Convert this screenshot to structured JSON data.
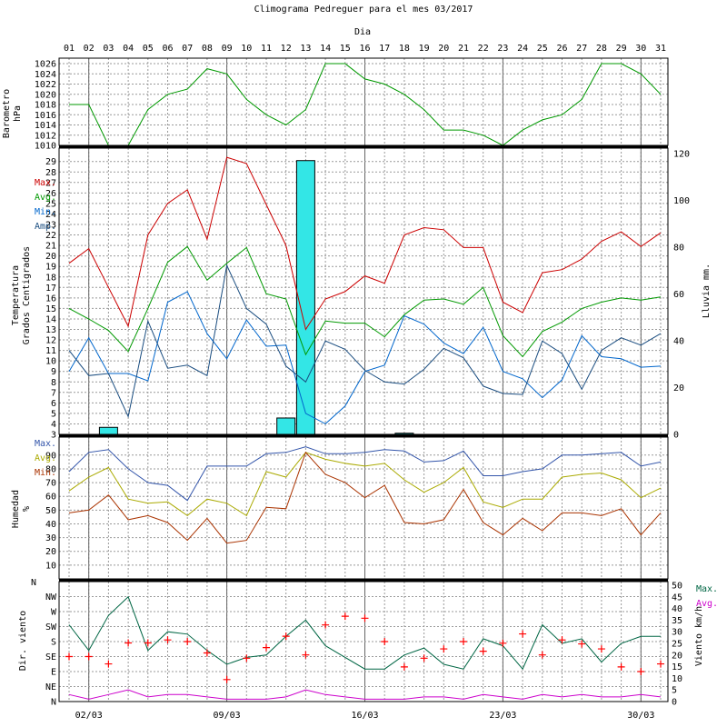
{
  "title": "Climograma Pedreguer para el mes 03/2017",
  "days_label": "Dia",
  "days": [
    "01",
    "02",
    "03",
    "04",
    "05",
    "06",
    "07",
    "08",
    "09",
    "10",
    "11",
    "12",
    "13",
    "14",
    "15",
    "16",
    "17",
    "18",
    "19",
    "20",
    "21",
    "22",
    "23",
    "24",
    "25",
    "26",
    "27",
    "28",
    "29",
    "30",
    "31"
  ],
  "date_ticks": [
    "02/03",
    "09/03",
    "16/03",
    "23/03",
    "30/03"
  ],
  "colors": {
    "max": "#cc0000",
    "avg": "#009900",
    "min": "#0066cc",
    "amp": "#1a4d80",
    "rain": "#33e6e6",
    "pressure": "#009900",
    "hum_max": "#3355aa",
    "hum_avg": "#aaaa00",
    "hum_min": "#aa3300",
    "wind_dir": "#ff0000",
    "wind_max": "#006644",
    "wind_avg": "#cc00cc"
  },
  "chart_data": [
    {
      "type": "line",
      "name": "barometro",
      "ylabel": [
        "Barometro",
        "hPa"
      ],
      "ylim": [
        1010,
        1026
      ],
      "ticks": [
        "1010",
        "1012",
        "1014",
        "1016",
        "1018",
        "1020",
        "1022",
        "1024",
        "1026"
      ],
      "series": [
        {
          "values": [
            1018,
            1018,
            1009,
            1010,
            1017,
            1020,
            1021,
            1025,
            1024,
            1019,
            1016,
            1014,
            1017,
            1026,
            1026,
            1023,
            1022,
            1020,
            1017,
            1013,
            1013,
            1012,
            1010,
            1013,
            1015,
            1016,
            1019,
            1026,
            1026,
            1024,
            1020
          ]
        }
      ]
    },
    {
      "type": "line",
      "name": "temperatura",
      "ylabel": [
        "Temperatura",
        "Grados Centigrados"
      ],
      "legend": [
        "Max.",
        "Avg.",
        "Min.",
        "Amp."
      ],
      "ylim": [
        3,
        30
      ],
      "ticks": [
        "3",
        "4",
        "5",
        "6",
        "7",
        "8",
        "9",
        "10",
        "11",
        "12",
        "13",
        "14",
        "15",
        "16",
        "17",
        "18",
        "19",
        "20",
        "21",
        "22",
        "23",
        "24",
        "25",
        "26",
        "27",
        "28",
        "29"
      ],
      "y2label": "Lluvia mm.",
      "y2lim": [
        0,
        120
      ],
      "y2ticks": [
        "0",
        "20",
        "40",
        "60",
        "80",
        "100",
        "120"
      ],
      "series": [
        {
          "values": [
            19.3,
            20.7,
            17.0,
            13.3,
            22.0,
            25.0,
            26.3,
            21.6,
            29.4,
            28.8,
            24.9,
            21.0,
            13.0,
            15.9,
            16.6,
            18.1,
            17.4,
            22.0,
            22.7,
            22.5,
            20.8,
            20.8,
            15.6,
            14.6,
            18.4,
            18.7,
            19.7,
            21.4,
            22.3,
            20.9,
            22.2
          ]
        },
        {
          "values": [
            15.0,
            14.0,
            12.9,
            10.9,
            15.0,
            19.4,
            20.9,
            17.7,
            19.3,
            20.8,
            16.4,
            15.9,
            10.6,
            13.8,
            13.6,
            13.6,
            12.3,
            14.4,
            15.8,
            15.9,
            15.4,
            17.0,
            12.4,
            10.4,
            12.8,
            13.7,
            15.0,
            15.6,
            16.0,
            15.8,
            16.1
          ]
        },
        {
          "values": [
            9.0,
            12.2,
            8.8,
            8.8,
            8.1,
            15.6,
            16.6,
            12.6,
            10.2,
            13.9,
            11.4,
            11.5,
            5.0,
            4.0,
            5.7,
            9.0,
            9.6,
            14.3,
            13.5,
            11.7,
            10.7,
            13.2,
            9.0,
            8.3,
            6.5,
            8.2,
            12.4,
            10.4,
            10.2,
            9.4,
            9.5
          ]
        },
        {
          "values": [
            11.0,
            8.6,
            8.8,
            4.7,
            13.8,
            9.3,
            9.6,
            8.6,
            19.1,
            15.0,
            13.5,
            9.5,
            8.0,
            11.9,
            11.1,
            9.1,
            8.0,
            7.8,
            9.2,
            11.2,
            10.3,
            7.6,
            6.9,
            6.8,
            11.9,
            10.7,
            7.3,
            11.0,
            12.2,
            11.5,
            12.6
          ]
        }
      ],
      "rain_values": [
        0,
        0,
        3,
        0,
        0,
        0,
        0,
        0,
        0,
        0,
        0,
        7,
        117,
        0,
        0,
        0,
        0,
        0.5,
        0,
        0,
        0,
        0,
        0,
        0,
        0,
        0,
        0,
        0,
        0,
        0,
        0
      ]
    },
    {
      "type": "line",
      "name": "humedad",
      "ylabel": [
        "Humedad",
        "%"
      ],
      "legend": [
        "Max.",
        "Avg.",
        "Min."
      ],
      "ylim": [
        0,
        100
      ],
      "ticks": [
        "10",
        "20",
        "30",
        "40",
        "50",
        "60",
        "70",
        "80",
        "90"
      ],
      "series": [
        {
          "values": [
            78,
            92,
            94,
            80,
            70,
            68,
            57,
            82,
            82,
            82,
            91,
            92,
            96,
            91,
            91,
            92,
            94,
            93,
            85,
            86,
            93,
            75,
            75,
            78,
            80,
            90,
            90,
            91,
            92,
            82,
            85
          ]
        },
        {
          "values": [
            64,
            74,
            81,
            58,
            55,
            56,
            46,
            58,
            55,
            46,
            78,
            74,
            92,
            87,
            84,
            82,
            84,
            72,
            63,
            70,
            81,
            56,
            52,
            58,
            58,
            74,
            76,
            77,
            72,
            59,
            66
          ]
        },
        {
          "values": [
            48,
            50,
            61,
            43,
            46,
            41,
            28,
            44,
            26,
            28,
            52,
            51,
            92,
            76,
            70,
            59,
            68,
            41,
            40,
            43,
            65,
            41,
            32,
            44,
            35,
            48,
            48,
            46,
            51,
            32,
            48
          ]
        }
      ]
    },
    {
      "type": "scatter",
      "name": "viento",
      "ylabel": "Dir. viento",
      "dir_ticks": [
        "N",
        "NE",
        "E",
        "SE",
        "S",
        "SW",
        "W",
        "NW"
      ],
      "y2label": "Viento km/h",
      "legend": [
        "Max.",
        "Avg."
      ],
      "y2lim": [
        0,
        50
      ],
      "y2ticks": [
        "0",
        "5",
        "10",
        "15",
        "20",
        "25",
        "30",
        "35",
        "40",
        "45",
        "50"
      ],
      "direction_deg": [
        135,
        135,
        113,
        176,
        176,
        185,
        180,
        146,
        66,
        130,
        162,
        196,
        140,
        230,
        256,
        250,
        180,
        104,
        130,
        158,
        180,
        151,
        175,
        203,
        140,
        185,
        173,
        158,
        104,
        90,
        113
      ],
      "series": [
        {
          "values": [
            33,
            22,
            37,
            45,
            22,
            30,
            29,
            22,
            16,
            19,
            20,
            28,
            35,
            24,
            19,
            14,
            14,
            20,
            23,
            16,
            14,
            27,
            24,
            14,
            33,
            25,
            27,
            17,
            25,
            28,
            28
          ]
        },
        {
          "values": [
            3,
            1,
            3,
            5,
            2,
            3,
            3,
            2,
            1,
            1,
            1,
            2,
            5,
            3,
            2,
            1,
            1,
            1,
            2,
            2,
            1,
            3,
            2,
            1,
            3,
            2,
            3,
            2,
            2,
            3,
            2
          ]
        }
      ]
    }
  ]
}
